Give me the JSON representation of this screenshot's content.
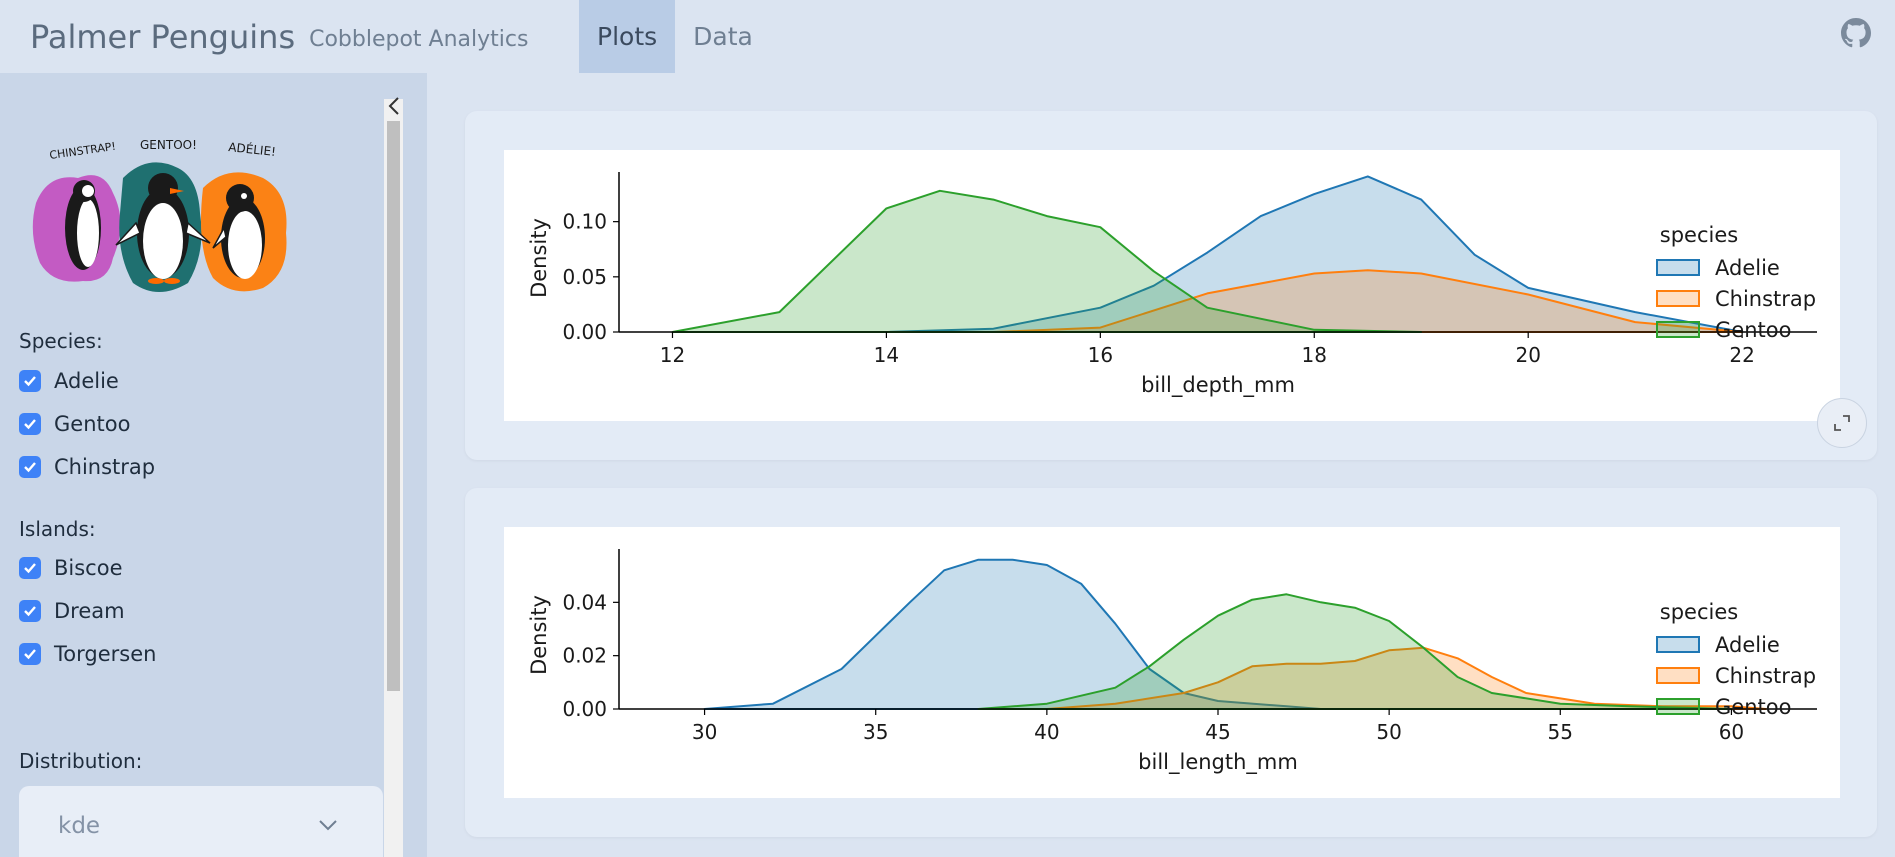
{
  "header": {
    "title": "Palmer Penguins",
    "subtitle": "Cobblepot Analytics",
    "tabs": [
      {
        "label": "Plots",
        "active": true
      },
      {
        "label": "Data",
        "active": false
      }
    ]
  },
  "sidebar": {
    "image_labels": [
      "CHINSTRAP!",
      "GENTOO!",
      "ADÉLIE!"
    ],
    "species_label": "Species:",
    "species": [
      {
        "label": "Adelie",
        "checked": true
      },
      {
        "label": "Gentoo",
        "checked": true
      },
      {
        "label": "Chinstrap",
        "checked": true
      }
    ],
    "islands_label": "Islands:",
    "islands": [
      {
        "label": "Biscoe",
        "checked": true
      },
      {
        "label": "Dream",
        "checked": true
      },
      {
        "label": "Torgersen",
        "checked": true
      }
    ],
    "distribution_label": "Distribution:",
    "distribution_value": "kde"
  },
  "colors": {
    "accent": "#3e82f7",
    "adelie": "#1f77b4",
    "chinstrap": "#ff7f0e",
    "gentoo": "#2ca02c"
  },
  "chart_data": [
    {
      "type": "area",
      "xlabel": "bill_depth_mm",
      "ylabel": "Density",
      "xlim": [
        11.5,
        22.7
      ],
      "ylim": [
        0,
        0.145
      ],
      "xticks": [
        12,
        14,
        16,
        18,
        20,
        22
      ],
      "yticks": [
        0.0,
        0.05,
        0.1
      ],
      "yticklabels": [
        "0.00",
        "0.05",
        "0.10"
      ],
      "legend_title": "species",
      "legend_position": "right",
      "series": [
        {
          "name": "Adelie",
          "color": "#1f77b4",
          "x": [
            14.0,
            15.0,
            16.0,
            16.5,
            17.0,
            17.5,
            18.0,
            18.5,
            19.0,
            19.5,
            20.0,
            21.0,
            22.0
          ],
          "values": [
            0.0,
            0.003,
            0.022,
            0.042,
            0.072,
            0.105,
            0.125,
            0.141,
            0.12,
            0.07,
            0.04,
            0.018,
            0.0
          ]
        },
        {
          "name": "Chinstrap",
          "color": "#ff7f0e",
          "x": [
            15.0,
            16.0,
            17.0,
            18.0,
            18.5,
            19.0,
            20.0,
            21.0,
            22.0
          ],
          "values": [
            0.0,
            0.004,
            0.035,
            0.053,
            0.056,
            0.053,
            0.034,
            0.009,
            0.0
          ]
        },
        {
          "name": "Gentoo",
          "color": "#2ca02c",
          "x": [
            12.0,
            13.0,
            14.0,
            14.5,
            15.0,
            15.5,
            16.0,
            16.5,
            17.0,
            18.0,
            19.0
          ],
          "values": [
            0.0,
            0.018,
            0.112,
            0.128,
            0.12,
            0.105,
            0.095,
            0.055,
            0.022,
            0.002,
            0.0
          ]
        }
      ]
    },
    {
      "type": "area",
      "xlabel": "bill_length_mm",
      "ylabel": "Density",
      "xlim": [
        27.5,
        62.5
      ],
      "ylim": [
        0,
        0.06
      ],
      "xticks": [
        30,
        35,
        40,
        45,
        50,
        55,
        60
      ],
      "yticks": [
        0.0,
        0.02,
        0.04
      ],
      "yticklabels": [
        "0.00",
        "0.02",
        "0.04"
      ],
      "legend_title": "species",
      "legend_position": "right",
      "series": [
        {
          "name": "Adelie",
          "color": "#1f77b4",
          "x": [
            30,
            32,
            34,
            36,
            37,
            38,
            39,
            40,
            41,
            42,
            43,
            44,
            45,
            47,
            48
          ],
          "values": [
            0.0,
            0.002,
            0.015,
            0.04,
            0.052,
            0.056,
            0.056,
            0.054,
            0.047,
            0.032,
            0.015,
            0.006,
            0.003,
            0.001,
            0.0
          ]
        },
        {
          "name": "Chinstrap",
          "color": "#ff7f0e",
          "x": [
            40,
            42,
            44,
            45,
            46,
            47,
            48,
            49,
            50,
            51,
            52,
            53,
            54,
            56,
            58,
            60,
            61
          ],
          "values": [
            0.0,
            0.002,
            0.006,
            0.01,
            0.016,
            0.017,
            0.017,
            0.018,
            0.022,
            0.023,
            0.019,
            0.012,
            0.006,
            0.002,
            0.001,
            0.001,
            0.0
          ]
        },
        {
          "name": "Gentoo",
          "color": "#2ca02c",
          "x": [
            38,
            40,
            42,
            43,
            44,
            45,
            46,
            47,
            48,
            49,
            50,
            51,
            52,
            53,
            55,
            57,
            60
          ],
          "values": [
            0.0,
            0.002,
            0.008,
            0.016,
            0.026,
            0.035,
            0.041,
            0.043,
            0.04,
            0.038,
            0.033,
            0.023,
            0.012,
            0.006,
            0.002,
            0.001,
            0.0
          ]
        }
      ]
    }
  ]
}
